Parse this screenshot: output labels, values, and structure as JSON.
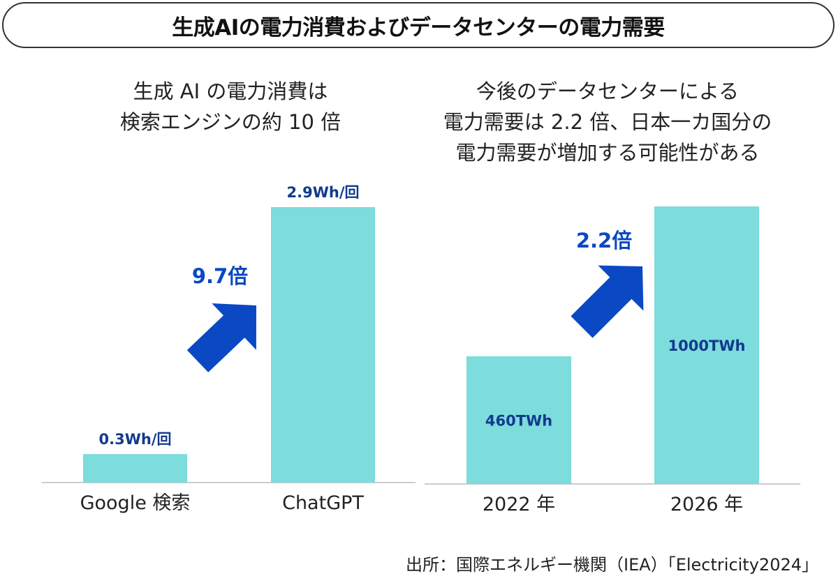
{
  "header": {
    "title": "生成AIの電力消費およびデータセンターの電力需要"
  },
  "colors": {
    "bar": "#7ddcdc",
    "arrow": "#0a48c4",
    "value_label": "#123a8c",
    "baseline": "#c9ccd1"
  },
  "chart_data": [
    {
      "type": "bar",
      "title_lines": [
        "生成 AI の電力消費は",
        "検索エンジンの約 10 倍"
      ],
      "categories": [
        "Google 検索",
        "ChatGPT"
      ],
      "values": [
        0.3,
        2.9
      ],
      "value_labels": [
        "0.3Wh/回",
        "2.9Wh/回"
      ],
      "value_label_position": [
        "above",
        "above"
      ],
      "unit": "Wh/回",
      "ylim": [
        0,
        2.9
      ],
      "arrow_label": "9.7倍",
      "grid": false
    },
    {
      "type": "bar",
      "title_lines": [
        "今後のデータセンターによる",
        "電力需要は 2.2 倍、日本一カ国分の",
        "電力需要が増加する可能性がある"
      ],
      "categories": [
        "2022 年",
        "2026 年"
      ],
      "values": [
        460,
        1000
      ],
      "value_labels": [
        "460TWh",
        "1000TWh"
      ],
      "value_label_position": [
        "inside",
        "inside"
      ],
      "unit": "TWh",
      "ylim": [
        0,
        1000
      ],
      "arrow_label": "2.2倍",
      "grid": false
    }
  ],
  "source": "出所：国際エネルギー機関（IEA）「Electricity2024」"
}
